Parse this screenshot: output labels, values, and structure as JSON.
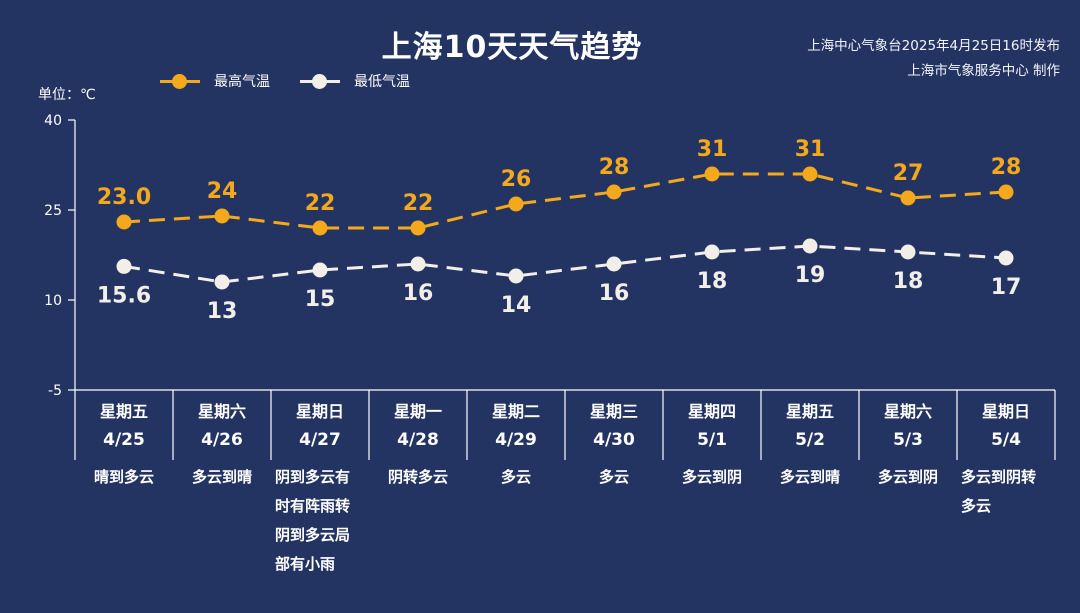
{
  "header": {
    "title": "上海10天天气趋势",
    "publisher_line1": "上海中心气象台2025年4月25日16时发布",
    "publisher_line2": "上海市气象服务中心 制作",
    "unit": "单位：℃"
  },
  "legend": [
    {
      "label": "最高气温",
      "color": "#f4a81c"
    },
    {
      "label": "最低气温",
      "color": "#f2eee8"
    }
  ],
  "colors": {
    "background": "#243462",
    "high": "#f4a81c",
    "low": "#f2eee8",
    "axis": "#ffffff"
  },
  "chart_data": {
    "type": "line",
    "title": "上海10天天气趋势",
    "xlabel": "",
    "ylabel": "单位：℃",
    "ylim": [
      -5,
      40
    ],
    "yticks": [
      40,
      25,
      10,
      -5
    ],
    "grid": false,
    "legend_position": "top-left",
    "categories": [
      "4/25",
      "4/26",
      "4/27",
      "4/28",
      "4/29",
      "4/30",
      "5/1",
      "5/2",
      "5/3",
      "5/4"
    ],
    "weekdays": [
      "星期五",
      "星期六",
      "星期日",
      "星期一",
      "星期二",
      "星期三",
      "星期四",
      "星期五",
      "星期六",
      "星期日"
    ],
    "conditions": [
      "晴到多云",
      "多云到晴",
      "阴到多云有时有阵雨转阴到多云局部有小雨",
      "阴转多云",
      "多云",
      "多云",
      "多云到阴",
      "多云到晴",
      "多云到阴",
      "多云到阴转多云"
    ],
    "series": [
      {
        "name": "最高气温",
        "values": [
          23.0,
          24,
          22,
          22,
          26,
          28,
          31,
          31,
          27,
          28
        ],
        "labels": [
          "23.0",
          "24",
          "22",
          "22",
          "26",
          "28",
          "31",
          "31",
          "27",
          "28"
        ]
      },
      {
        "name": "最低气温",
        "values": [
          15.6,
          13,
          15,
          16,
          14,
          16,
          18,
          19,
          18,
          17
        ],
        "labels": [
          "15.6",
          "13",
          "15",
          "16",
          "14",
          "16",
          "18",
          "19",
          "18",
          "17"
        ]
      }
    ]
  },
  "columns": [
    {
      "weekday": "星期五",
      "date": "4/25",
      "cond": [
        "晴到多云"
      ]
    },
    {
      "weekday": "星期六",
      "date": "4/26",
      "cond": [
        "多云到晴"
      ]
    },
    {
      "weekday": "星期日",
      "date": "4/27",
      "cond": [
        "阴到多云有",
        "时有阵雨转",
        "阴到多云局",
        "部有小雨"
      ]
    },
    {
      "weekday": "星期一",
      "date": "4/28",
      "cond": [
        "阴转多云"
      ]
    },
    {
      "weekday": "星期二",
      "date": "4/29",
      "cond": [
        "多云"
      ]
    },
    {
      "weekday": "星期三",
      "date": "4/30",
      "cond": [
        "多云"
      ]
    },
    {
      "weekday": "星期四",
      "date": "5/1",
      "cond": [
        "多云到阴"
      ]
    },
    {
      "weekday": "星期五",
      "date": "5/2",
      "cond": [
        "多云到晴"
      ]
    },
    {
      "weekday": "星期六",
      "date": "5/3",
      "cond": [
        "多云到阴"
      ]
    },
    {
      "weekday": "星期日",
      "date": "5/4",
      "cond": [
        "多云到阴转",
        "多云"
      ]
    }
  ]
}
